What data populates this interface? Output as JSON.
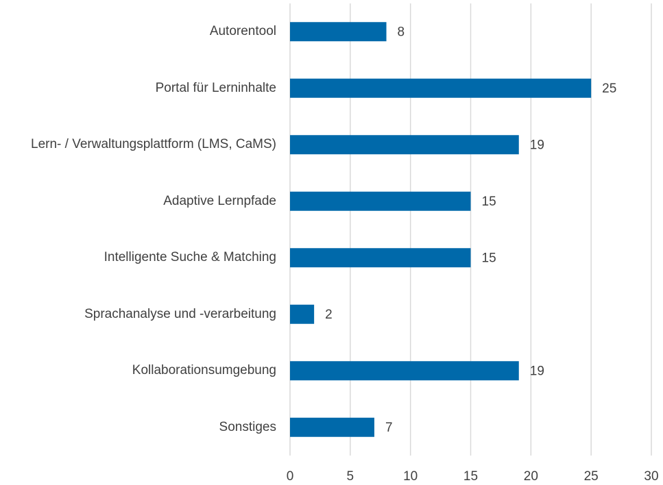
{
  "chart_data": {
    "type": "bar",
    "orientation": "horizontal",
    "categories": [
      "Autorentool",
      "Portal für Lerninhalte",
      "Lern- / Verwaltungsplattform (LMS, CaMS)",
      "Adaptive Lernpfade",
      "Intelligente Suche & Matching",
      "Sprachanalyse und -verarbeitung",
      "Kollaborationsumgebung",
      "Sonstiges"
    ],
    "values": [
      8,
      25,
      19,
      15,
      15,
      2,
      19,
      7
    ],
    "color": "#0069aa",
    "xlim": [
      0,
      30
    ],
    "xticks": [
      0,
      5,
      10,
      15,
      20,
      25,
      30
    ],
    "grid": true
  }
}
